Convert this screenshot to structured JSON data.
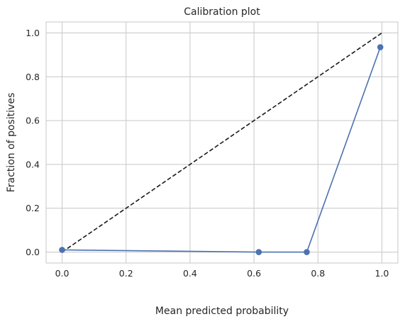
{
  "chart_data": {
    "type": "line",
    "title": "Calibration plot",
    "xlabel": "Mean predicted probability",
    "ylabel": "Fraction of positives",
    "xlim": [
      -0.05,
      1.05
    ],
    "ylim": [
      -0.05,
      1.05
    ],
    "xticks": [
      0.0,
      0.2,
      0.4,
      0.6,
      0.8,
      1.0
    ],
    "yticks": [
      0.0,
      0.2,
      0.4,
      0.6,
      0.8,
      1.0
    ],
    "xtick_labels": [
      "0.0",
      "0.2",
      "0.4",
      "0.6",
      "0.8",
      "1.0"
    ],
    "ytick_labels": [
      "0.0",
      "0.2",
      "0.4",
      "0.6",
      "0.8",
      "1.0"
    ],
    "grid": true,
    "series": [
      {
        "style": "dashed",
        "color": "#1a1a1a",
        "x": [
          0.0,
          1.0
        ],
        "y": [
          0.0,
          1.0
        ]
      },
      {
        "style": "line-marker",
        "color": "#4c72b0",
        "x": [
          0.0,
          0.615,
          0.765,
          0.995
        ],
        "y": [
          0.01,
          0.0,
          0.0,
          0.935
        ]
      }
    ]
  }
}
